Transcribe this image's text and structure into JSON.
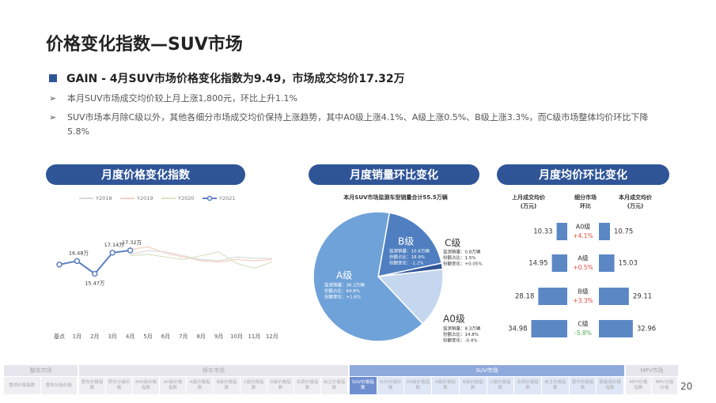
{
  "header": {
    "title": "价格变化指数—SUV市场",
    "headline": "GAIN - 4月SUV市场价格变化指数为9.49，市场成交均价17.32万",
    "bullets": [
      "本月SUV市场成交均价较上月上涨1,800元，环比上升1.1%",
      "SUV市场本月除C级以外，其他各细分市场成交均价保持上涨趋势，其中A0级上涨4.1%、A级上涨0.5%、B级上涨3.3%，而C级市场整体均价环比下降5.8%"
    ]
  },
  "sections": [
    "月度价格变化指数",
    "月度销量环比变化",
    "月度均价环比变化"
  ],
  "chart_data": [
    {
      "type": "line",
      "categories": [
        "基点",
        "1月",
        "2月",
        "3月",
        "4月",
        "5月",
        "6月",
        "7月",
        "8月",
        "9月",
        "10月",
        "11月",
        "12月"
      ],
      "series": [
        {
          "name": "Y2018",
          "color": "#d9d9d9",
          "values": [
            null,
            null,
            null,
            null,
            17.0,
            17.3,
            17.2,
            16.9,
            16.6,
            16.5,
            16.8,
            16.7,
            16.7
          ]
        },
        {
          "name": "Y2019",
          "color": "#f6cfc0",
          "values": [
            null,
            null,
            null,
            null,
            17.4,
            17.6,
            17.1,
            16.8,
            16.5,
            16.4,
            16.6,
            16.5,
            16.6
          ]
        },
        {
          "name": "Y2020",
          "color": "#d8e4c4",
          "values": [
            null,
            null,
            null,
            null,
            16.9,
            17.0,
            16.8,
            16.6,
            16.9,
            17.2,
            16.3,
            15.9,
            16.4
          ]
        },
        {
          "name": "Y2021",
          "color": "#5b7fbf",
          "markers": true,
          "values": [
            16.2,
            16.48,
            15.47,
            17.14,
            17.32,
            null,
            null,
            null,
            null,
            null,
            null,
            null,
            null
          ],
          "value_labels": [
            null,
            "16.48万",
            "15.47万",
            "17.14万",
            "17.32万",
            null,
            null,
            null,
            null,
            null,
            null,
            null,
            null
          ]
        }
      ],
      "ylim": [
        14,
        19
      ]
    },
    {
      "type": "pie",
      "title": "本月SUV市场监测车型销量合计55.5万辆",
      "categories": [
        "B级",
        "C级",
        "A0级",
        "A级"
      ],
      "values": [
        18.9,
        1.5,
        14.8,
        64.8
      ],
      "colors": [
        "#4f7fc0",
        "#2f5597",
        "#c5d7ef",
        "#6fa2d8"
      ],
      "details": [
        [
          "监测销量：10.6万辆",
          "份额占比：18.9%",
          "份额变化：-1.2%"
        ],
        [
          "监测销量：0.8万辆",
          "份额占比：1.5%",
          "份额变化：+0.05%"
        ],
        [
          "监测销量：8.3万辆",
          "份额占比：14.8%",
          "份额变化：-0.4%"
        ],
        [
          "监测销量：36.3万辆",
          "份额占比：64.8%",
          "份额变化：+1.6%"
        ]
      ]
    },
    {
      "type": "bar",
      "columns": [
        [
          "上月成交均价",
          "(万元)"
        ],
        [
          "细分市场",
          "环比"
        ],
        [
          "本月成交均价",
          "(万元)"
        ]
      ],
      "categories": [
        "A0级",
        "A级",
        "B级",
        "C级"
      ],
      "series": [
        {
          "color": "#5b87c5",
          "values": [
            10.33,
            14.95,
            28.18,
            34.98
          ]
        },
        {
          "color": "#5b87c5",
          "values": [
            10.75,
            15.03,
            29.11,
            32.96
          ]
        }
      ],
      "changes": {
        "values": [
          4.1,
          0.5,
          3.3,
          -5.8
        ],
        "value_labels": [
          "+4.1%",
          "+0.5%",
          "+3.3%",
          "-5.8%"
        ]
      },
      "xlim": [
        0,
        35
      ]
    }
  ],
  "nav": {
    "groups": [
      {
        "name": "整体市场",
        "items": [
          "整体价格指数",
          "整体分级价格"
        ]
      },
      {
        "name": "轿车市场",
        "items": [
          "轿车价格指数",
          "轿车分级价格",
          "A00级价格指数",
          "A0级价格指数",
          "A级价格指数",
          "B级价格指数",
          "C级价格指数",
          "D级价格指数",
          "合资价格指数",
          "自主价格指数"
        ]
      },
      {
        "name": "SUV市场",
        "active": true,
        "active_item": 0,
        "items": [
          "SUV价格指数",
          "SUV分级价格",
          "A0级价格指数",
          "A级价格指数",
          "B级价格指数",
          "C级价格指数",
          "合资价格指数",
          "自主价格指数",
          "豪华价格指数",
          "新能源价格指数"
        ]
      },
      {
        "name": "MPV市场",
        "items": [
          "MPV价格指数",
          "MPV分级价格"
        ]
      }
    ]
  },
  "page_number": "20"
}
